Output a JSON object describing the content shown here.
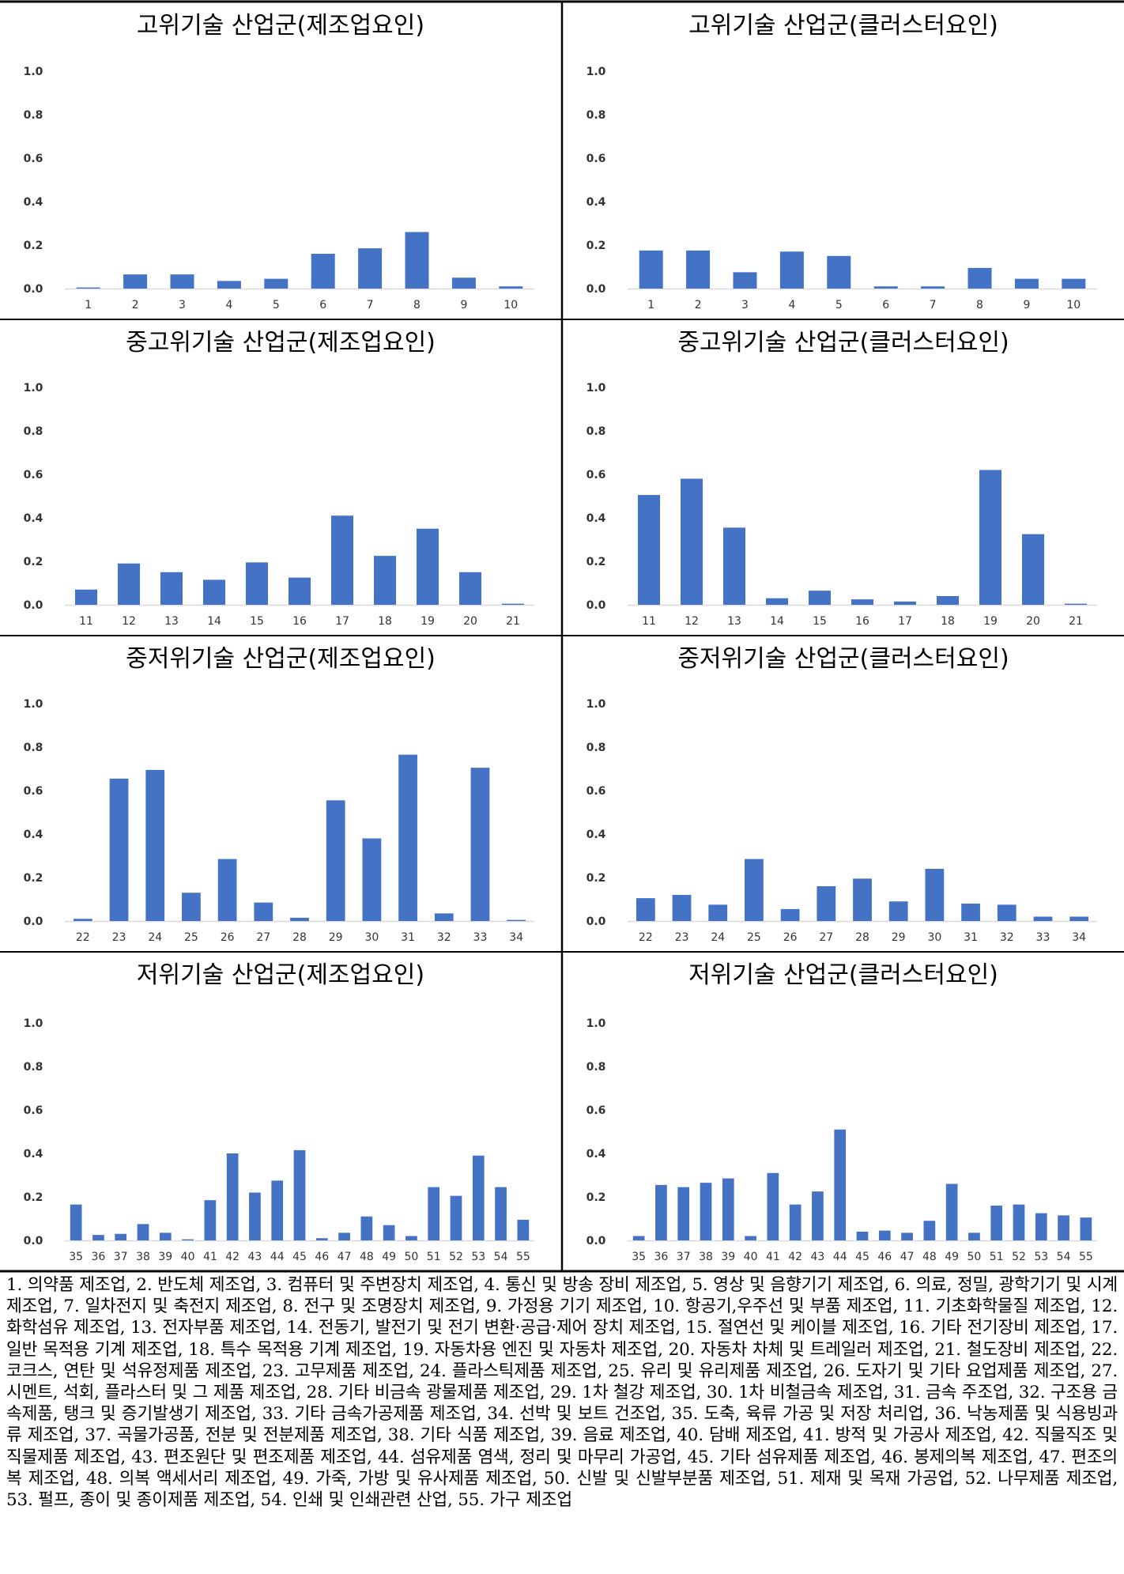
{
  "chart_data": [
    {
      "type": "bar",
      "title": "고위기술 산업군(제조업요인)",
      "categories": [
        "1",
        "2",
        "3",
        "4",
        "5",
        "6",
        "7",
        "8",
        "9",
        "10"
      ],
      "values": [
        0.005,
        0.065,
        0.065,
        0.035,
        0.045,
        0.16,
        0.185,
        0.26,
        0.05,
        0.01
      ],
      "ylim": [
        0,
        1.0
      ],
      "yticks": [
        "0.0",
        "0.2",
        "0.4",
        "0.6",
        "0.8",
        "1.0"
      ],
      "grid": false
    },
    {
      "type": "bar",
      "title": "고위기술 산업군(클러스터요인)",
      "categories": [
        "1",
        "2",
        "3",
        "4",
        "5",
        "6",
        "7",
        "8",
        "9",
        "10"
      ],
      "values": [
        0.175,
        0.175,
        0.075,
        0.17,
        0.15,
        0.01,
        0.01,
        0.095,
        0.045,
        0.045
      ],
      "ylim": [
        0,
        1.0
      ],
      "yticks": [
        "0.0",
        "0.2",
        "0.4",
        "0.6",
        "0.8",
        "1.0"
      ],
      "grid": false
    },
    {
      "type": "bar",
      "title": "중고위기술 산업군(제조업요인)",
      "categories": [
        "11",
        "12",
        "13",
        "14",
        "15",
        "16",
        "17",
        "18",
        "19",
        "20",
        "21"
      ],
      "values": [
        0.07,
        0.19,
        0.15,
        0.115,
        0.195,
        0.125,
        0.41,
        0.225,
        0.35,
        0.15,
        0.005
      ],
      "ylim": [
        0,
        1.0
      ],
      "yticks": [
        "0.0",
        "0.2",
        "0.4",
        "0.6",
        "0.8",
        "1.0"
      ],
      "grid": false
    },
    {
      "type": "bar",
      "title": "중고위기술 산업군(클러스터요인)",
      "categories": [
        "11",
        "12",
        "13",
        "14",
        "15",
        "16",
        "17",
        "18",
        "19",
        "20",
        "21"
      ],
      "values": [
        0.505,
        0.58,
        0.355,
        0.03,
        0.065,
        0.025,
        0.015,
        0.04,
        0.62,
        0.325,
        0.005
      ],
      "ylim": [
        0,
        1.0
      ],
      "yticks": [
        "0.0",
        "0.2",
        "0.4",
        "0.6",
        "0.8",
        "1.0"
      ],
      "grid": false
    },
    {
      "type": "bar",
      "title": "중저위기술 산업군(제조업요인)",
      "categories": [
        "22",
        "23",
        "24",
        "25",
        "26",
        "27",
        "28",
        "29",
        "30",
        "31",
        "32",
        "33",
        "34"
      ],
      "values": [
        0.01,
        0.655,
        0.695,
        0.13,
        0.285,
        0.085,
        0.015,
        0.555,
        0.38,
        0.765,
        0.035,
        0.705,
        0.005
      ],
      "ylim": [
        0,
        1.0
      ],
      "yticks": [
        "0.0",
        "0.2",
        "0.4",
        "0.6",
        "0.8",
        "1.0"
      ],
      "grid": false
    },
    {
      "type": "bar",
      "title": "중저위기술 산업군(클러스터요인)",
      "categories": [
        "22",
        "23",
        "24",
        "25",
        "26",
        "27",
        "28",
        "29",
        "30",
        "31",
        "32",
        "33",
        "34"
      ],
      "values": [
        0.105,
        0.12,
        0.075,
        0.285,
        0.055,
        0.16,
        0.195,
        0.09,
        0.24,
        0.08,
        0.075,
        0.02,
        0.02
      ],
      "ylim": [
        0,
        1.0
      ],
      "yticks": [
        "0.0",
        "0.2",
        "0.4",
        "0.6",
        "0.8",
        "1.0"
      ],
      "grid": false
    },
    {
      "type": "bar",
      "title": "저위기술 산업군(제조업요인)",
      "categories": [
        "35",
        "36",
        "37",
        "38",
        "39",
        "40",
        "41",
        "42",
        "43",
        "44",
        "45",
        "46",
        "47",
        "48",
        "49",
        "50",
        "51",
        "52",
        "53",
        "54",
        "55"
      ],
      "values": [
        0.165,
        0.025,
        0.03,
        0.075,
        0.035,
        0.005,
        0.185,
        0.4,
        0.22,
        0.275,
        0.415,
        0.01,
        0.035,
        0.11,
        0.07,
        0.02,
        0.245,
        0.205,
        0.39,
        0.245,
        0.095
      ],
      "ylim": [
        0,
        1.0
      ],
      "yticks": [
        "0.0",
        "0.2",
        "0.4",
        "0.6",
        "0.8",
        "1.0"
      ],
      "grid": false
    },
    {
      "type": "bar",
      "title": "저위기술 산업군(클러스터요인)",
      "categories": [
        "35",
        "36",
        "37",
        "38",
        "39",
        "40",
        "41",
        "42",
        "43",
        "44",
        "45",
        "46",
        "47",
        "48",
        "49",
        "50",
        "51",
        "52",
        "53",
        "54",
        "55"
      ],
      "values": [
        0.02,
        0.255,
        0.245,
        0.265,
        0.285,
        0.02,
        0.31,
        0.165,
        0.225,
        0.51,
        0.04,
        0.045,
        0.035,
        0.09,
        0.26,
        0.035,
        0.16,
        0.165,
        0.125,
        0.115,
        0.105
      ],
      "ylim": [
        0,
        1.0
      ],
      "yticks": [
        "0.0",
        "0.2",
        "0.4",
        "0.6",
        "0.8",
        "1.0"
      ],
      "grid": false
    }
  ],
  "legend_text": "1. 의약품 제조업, 2. 반도체 제조업, 3. 컴퓨터 및 주변장치 제조업, 4. 통신 및 방송 장비 제조업, 5. 영상 및 음향기기 제조업, 6. 의료, 정밀, 광학기기 및 시계 제조업, 7. 일차전지 및 축전지 제조업, 8. 전구 및 조명장치 제조업, 9. 가정용 기기 제조업, 10. 항공기,우주선 및 부품 제조업, 11. 기초화학물질 제조업, 12. 화학섬유 제조업, 13. 전자부품 제조업, 14. 전동기, 발전기 및 전기 변환·공급·제어 장치 제조업, 15. 절연선 및 케이블 제조업, 16. 기타 전기장비 제조업, 17. 일반 목적용 기계 제조업, 18. 특수 목적용 기계 제조업, 19. 자동차용 엔진 및 자동차 제조업, 20. 자동차 차체 및 트레일러 제조업, 21. 철도장비 제조업, 22. 코크스, 연탄 및 석유정제품 제조업, 23. 고무제품 제조업, 24. 플라스틱제품 제조업, 25. 유리 및 유리제품 제조업, 26. 도자기 및 기타 요업제품 제조업, 27. 시멘트, 석회, 플라스터 및 그 제품 제조업, 28. 기타 비금속 광물제품 제조업, 29. 1차 철강 제조업, 30. 1차 비철금속 제조업, 31. 금속 주조업, 32. 구조용 금속제품, 탱크 및 증기발생기 제조업, 33. 기타 금속가공제품 제조업, 34. 선박 및 보트 건조업, 35. 도축, 육류 가공 및 저장 처리업, 36. 낙농제품 및 식용빙과류 제조업, 37. 곡물가공품, 전분 및 전분제품 제조업, 38. 기타 식품 제조업, 39. 음료 제조업, 40. 담배 제조업, 41. 방적 및 가공사 제조업, 42. 직물직조 및 직물제품 제조업, 43. 편조원단 및 편조제품 제조업, 44. 섬유제품 염색, 정리 및 마무리 가공업, 45. 기타 섬유제품 제조업, 46. 봉제의복 제조업, 47. 편조의복 제조업, 48. 의복 액세서리 제조업, 49. 가죽, 가방 및 유사제품 제조업, 50. 신발 및 신발부분품 제조업, 51. 제재 및 목재 가공업, 52. 나무제품 제조업, 53. 펄프, 종이 및 종이제품 제조업, 54. 인쇄 및 인쇄관련 산업, 55. 가구 제조업",
  "colors": {
    "bar": "#4472C4",
    "border": "#000000",
    "text": "#333333"
  }
}
